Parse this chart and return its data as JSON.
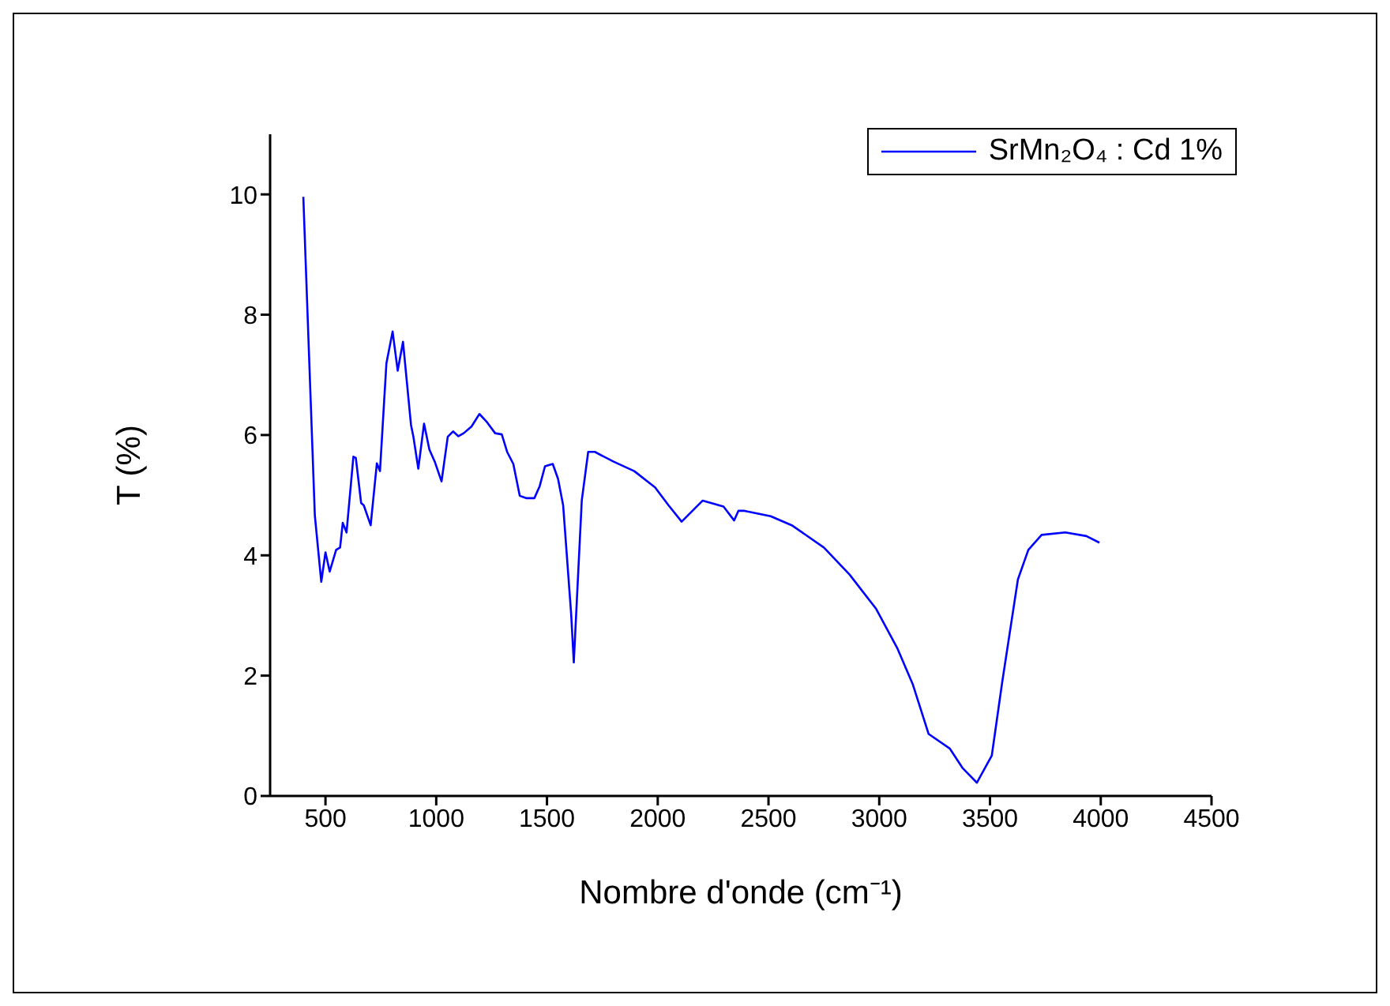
{
  "chart_data": {
    "type": "line",
    "xlabel": "Nombre d'onde (cm⁻¹)",
    "ylabel": "T (%)",
    "xlim": [
      250,
      4500
    ],
    "xticks": [
      500,
      1000,
      1500,
      2000,
      2500,
      3000,
      3500,
      4000,
      4500
    ],
    "ylim": [
      0,
      11
    ],
    "yticks": [
      0,
      2,
      4,
      6,
      8,
      10
    ],
    "grid": false,
    "legend": "top right",
    "line_style": "solid",
    "series": [
      {
        "name": "SrMn₂O₄ : Cd 1%",
        "color": "#0000ff",
        "x": [
          400,
          424,
          452,
          481,
          500,
          519,
          548,
          566,
          578,
          595,
          626,
          637,
          661,
          673,
          704,
          732,
          746,
          775,
          803,
          826,
          850,
          886,
          897,
          919,
          945,
          969,
          993,
          1024,
          1052,
          1076,
          1100,
          1124,
          1159,
          1195,
          1230,
          1266,
          1296,
          1320,
          1348,
          1377,
          1408,
          1443,
          1467,
          1491,
          1526,
          1550,
          1573,
          1609,
          1621,
          1657,
          1686,
          1716,
          1799,
          1894,
          1988,
          2049,
          2108,
          2203,
          2297,
          2345,
          2364,
          2392,
          2510,
          2605,
          2750,
          2866,
          2986,
          3081,
          3152,
          3223,
          3318,
          3377,
          3441,
          3508,
          3555,
          3626,
          3673,
          3733,
          3840,
          3935,
          3994
        ],
        "values": [
          9.96,
          7.51,
          4.66,
          3.56,
          4.05,
          3.73,
          4.09,
          4.13,
          4.54,
          4.38,
          5.64,
          5.62,
          4.87,
          4.83,
          4.5,
          5.53,
          5.4,
          7.19,
          7.72,
          7.07,
          7.55,
          6.17,
          5.97,
          5.44,
          6.19,
          5.76,
          5.56,
          5.23,
          5.97,
          6.06,
          5.98,
          6.03,
          6.14,
          6.35,
          6.21,
          6.03,
          6.01,
          5.72,
          5.52,
          4.99,
          4.95,
          4.95,
          5.15,
          5.48,
          5.52,
          5.27,
          4.83,
          3.03,
          2.22,
          4.91,
          5.72,
          5.72,
          5.56,
          5.4,
          5.13,
          4.83,
          4.56,
          4.91,
          4.81,
          4.58,
          4.74,
          4.74,
          4.65,
          4.5,
          4.13,
          3.68,
          3.11,
          2.46,
          1.85,
          1.03,
          0.79,
          0.46,
          0.22,
          0.67,
          1.89,
          3.6,
          4.09,
          4.34,
          4.38,
          4.32,
          4.21
        ]
      }
    ]
  }
}
